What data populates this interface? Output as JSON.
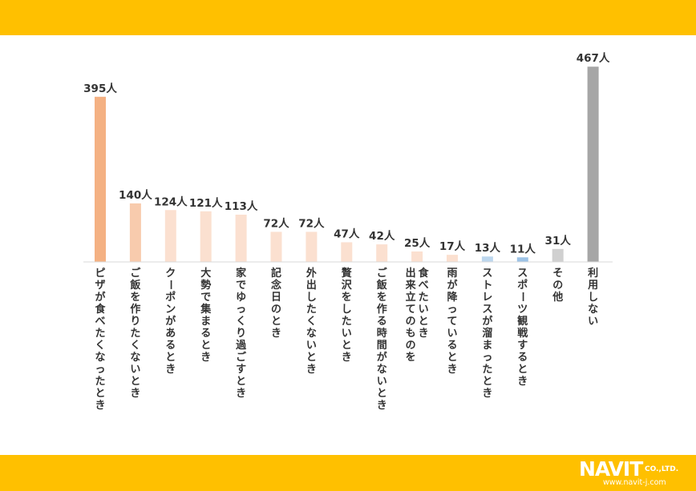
{
  "colors": {
    "band": "#FFC000",
    "axis": "#D9D9D9"
  },
  "branding": {
    "logo_text": "NAVIT",
    "logo_suffix": "CO.,LTD.",
    "url": "www.navit-j.com"
  },
  "chart_data": {
    "type": "bar",
    "title": "",
    "xlabel": "",
    "ylabel": "",
    "unit": "人",
    "ylim": [
      0,
      480
    ],
    "grid": false,
    "legend": "none",
    "categories": [
      "ピザが食べたくなったとき",
      "ご飯を作りたくないとき",
      "クーポンがあるとき",
      "大勢で集まるとき",
      "家でゆっくり過ごすとき",
      "記念日のとき",
      "外出したくないとき",
      "贅沢をしたいとき",
      "ご飯を作る時間がないとき",
      "食べたいとき\n出来立てのものを",
      "雨が降っているとき",
      "ストレスが溜まったとき",
      "スポーツ観戦するとき",
      "その他",
      "利用しない"
    ],
    "values": [
      395,
      140,
      124,
      121,
      113,
      72,
      72,
      47,
      42,
      25,
      17,
      13,
      11,
      31,
      467
    ],
    "value_labels": [
      "395人",
      "140人",
      "124人",
      "121人",
      "113人",
      "72人",
      "72人",
      "47人",
      "42人",
      "25人",
      "17人",
      "13人",
      "11人",
      "31人",
      "467人"
    ],
    "bar_colors": [
      "#F4B183",
      "#F8CBAD",
      "#FBE0D0",
      "#FBE0D0",
      "#FBE0D0",
      "#FBE0D0",
      "#FBE0D0",
      "#FBE0D0",
      "#FBE0D0",
      "#FBE0D0",
      "#FBE0D0",
      "#BDD7EE",
      "#9DC3E6",
      "#D0D0D0",
      "#A6A6A6"
    ]
  }
}
